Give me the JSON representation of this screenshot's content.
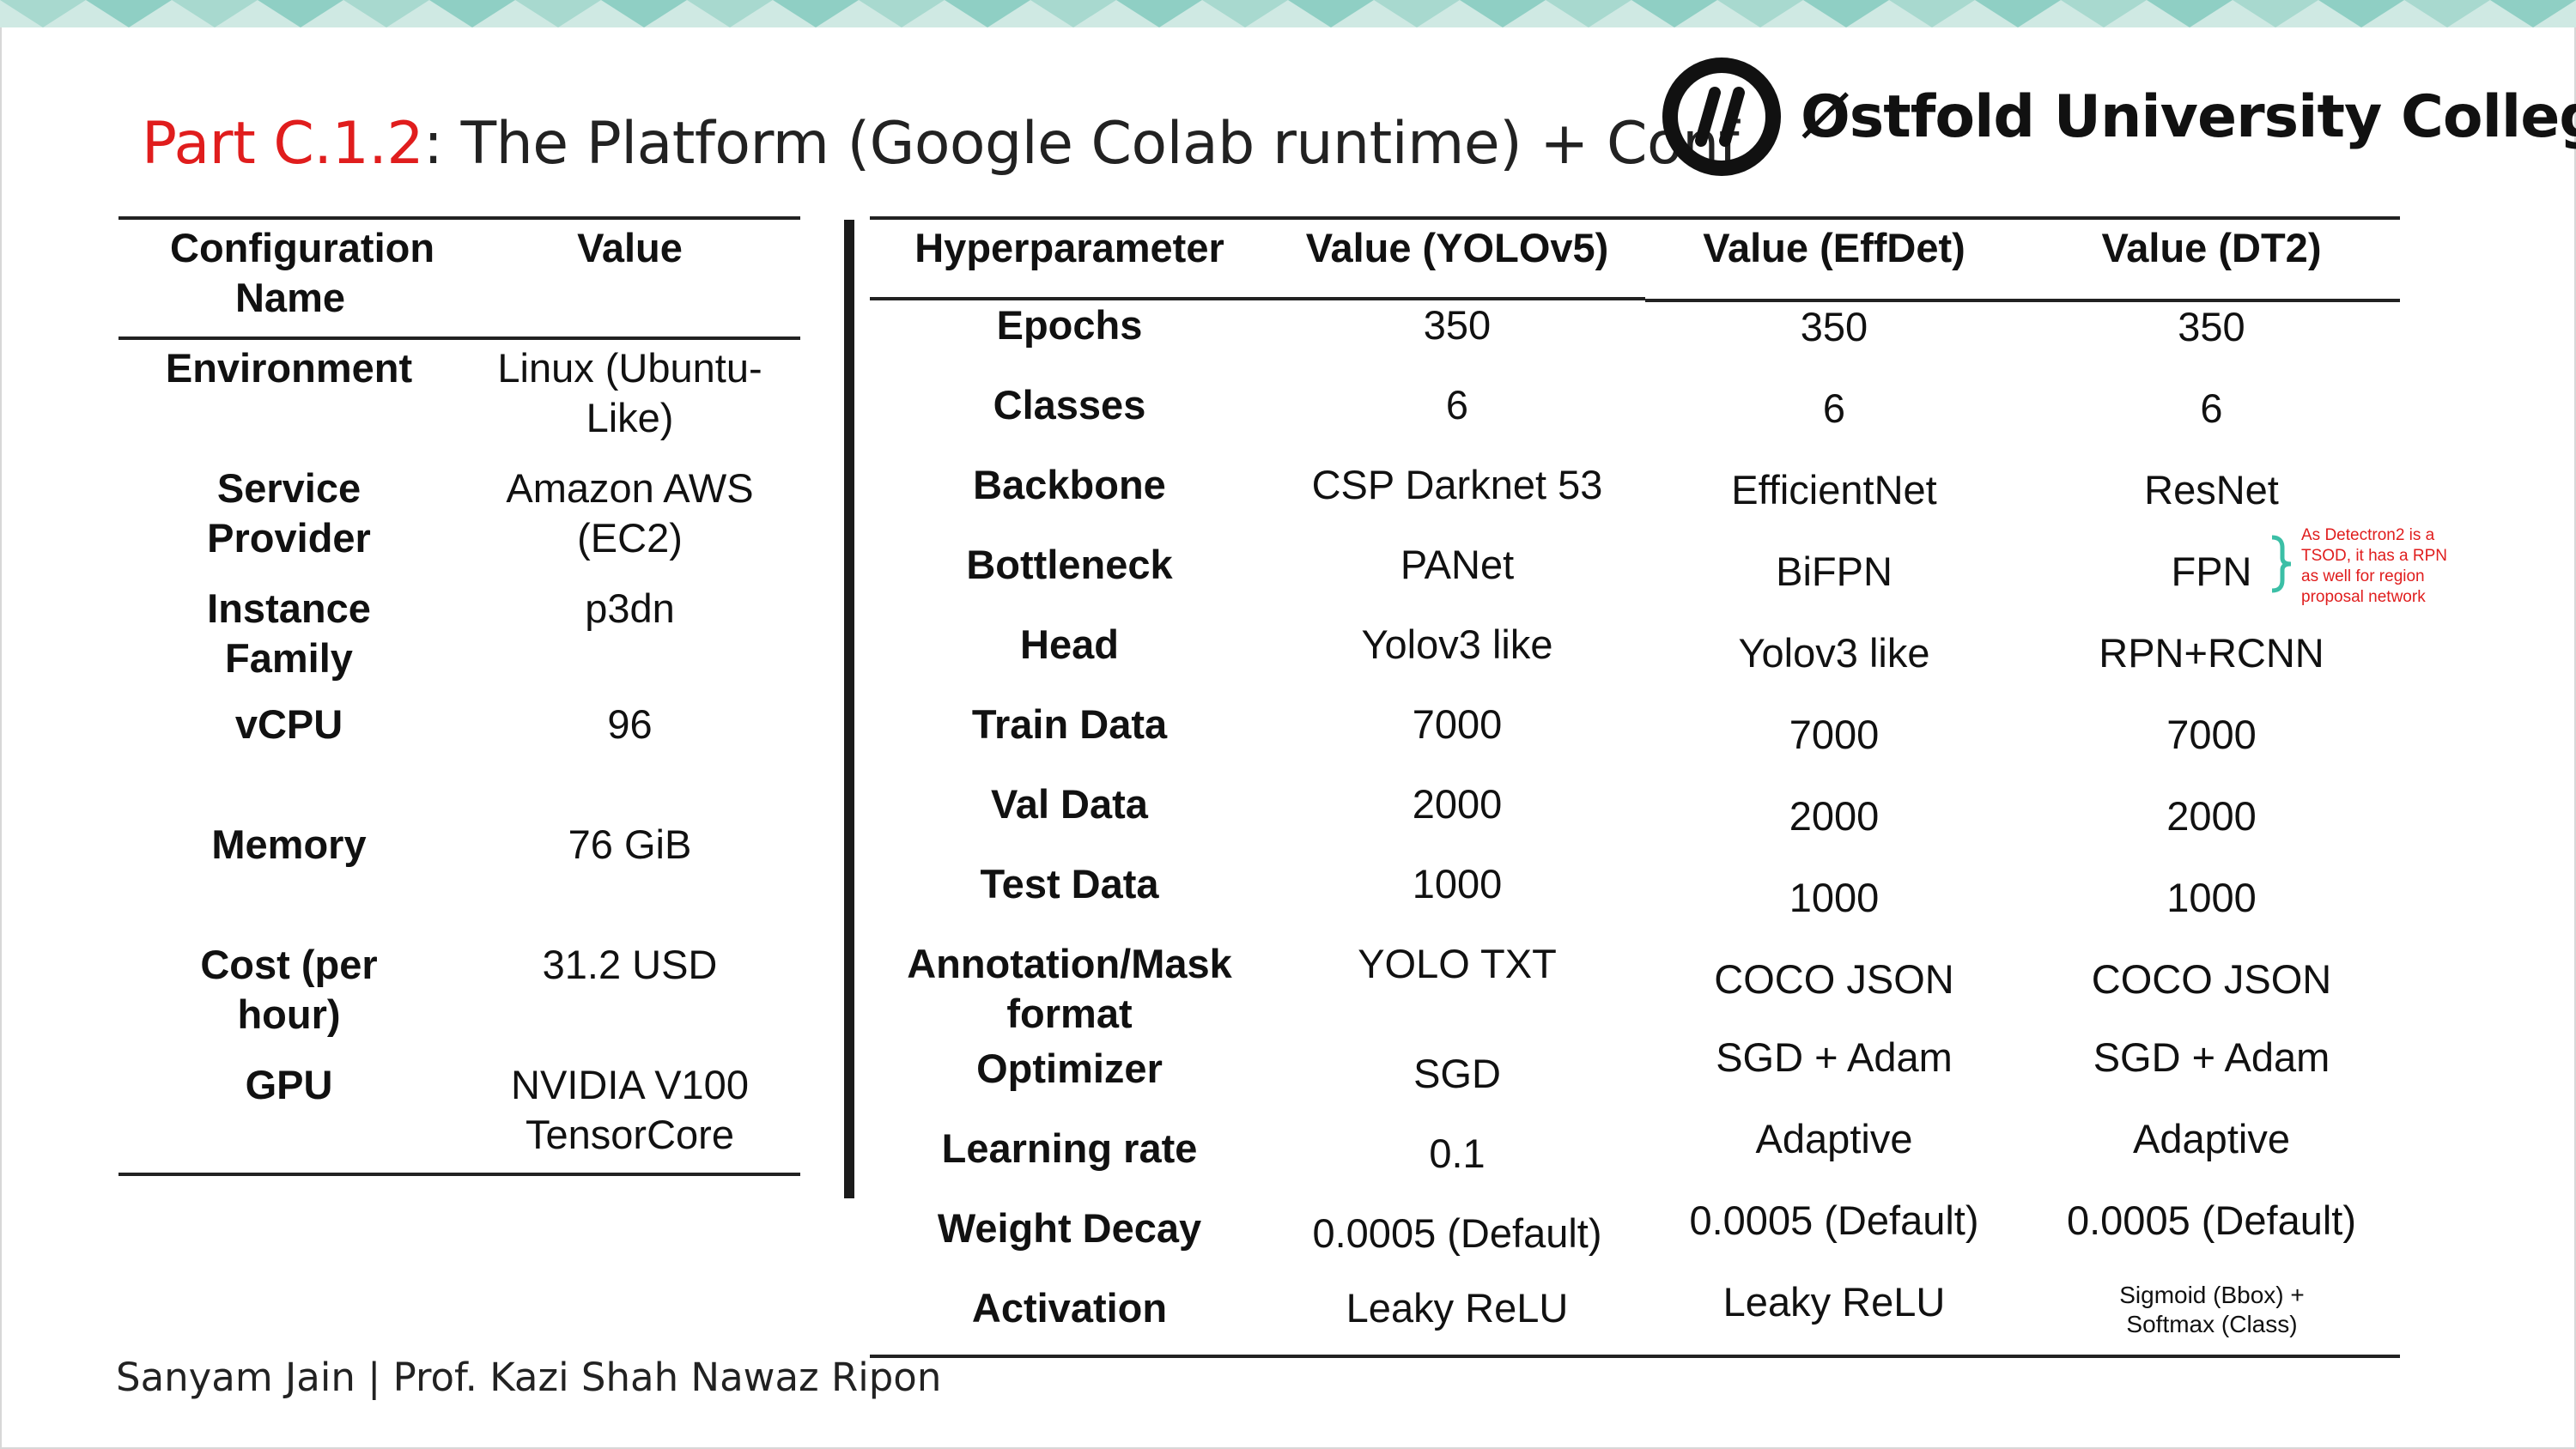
{
  "title": {
    "accent": "Part C.1.2",
    "rest": ": The Platform (Google Colab runtime) + Conf"
  },
  "logo": {
    "name": "Østfold University College",
    "icon": "hiof-logo-icon"
  },
  "config_table": {
    "headers": [
      "Configuration Name",
      "Value"
    ],
    "rows": [
      [
        "Environment",
        "Linux (Ubuntu-Like)"
      ],
      [
        "Service Provider",
        "Amazon AWS (EC2)"
      ],
      [
        "Instance Family",
        "p3dn"
      ],
      [
        "vCPU",
        "96"
      ],
      [
        "Memory",
        "76 GiB"
      ],
      [
        "Cost (per hour)",
        "31.2 USD"
      ],
      [
        "GPU",
        "NVIDIA V100 TensorCore"
      ]
    ]
  },
  "hyper_table": {
    "headers": [
      "Hyperparameter",
      "Value (YOLOv5)",
      "Value (EffDet)",
      "Value (DT2)"
    ],
    "rows": [
      [
        "Epochs",
        "350",
        "350",
        "350"
      ],
      [
        "Classes",
        "6",
        "6",
        "6"
      ],
      [
        "Backbone",
        "CSP Darknet 53",
        "EfficientNet",
        "ResNet"
      ],
      [
        "Bottleneck",
        "PANet",
        "BiFPN",
        "FPN"
      ],
      [
        "Head",
        "Yolov3 like",
        "Yolov3 like",
        "RPN+RCNN"
      ],
      [
        "Train Data",
        "7000",
        "7000",
        "7000"
      ],
      [
        "Val Data",
        "2000",
        "2000",
        "2000"
      ],
      [
        "Test Data",
        "1000",
        "1000",
        "1000"
      ],
      [
        "Annotation/Mask format",
        "YOLO TXT",
        "COCO JSON",
        "COCO JSON"
      ],
      [
        "Optimizer",
        "SGD",
        "SGD + Adam",
        "SGD + Adam"
      ],
      [
        "Learning rate",
        "0.1",
        "Adaptive",
        "Adaptive"
      ],
      [
        "Weight Decay",
        "0.0005 (Default)",
        "0.0005 (Default)",
        "0.0005 (Default)"
      ],
      [
        "Activation",
        "Leaky ReLU",
        "Leaky ReLU",
        "Sigmoid (Bbox) + Softmax (Class)"
      ]
    ]
  },
  "annotation_note": "As Detectron2 is a TSOD, it has a RPN as well for region proposal network",
  "footer": "Sanyam Jain | Prof. Kazi Shah Nawaz Ripon",
  "colors": {
    "accent": "#e01d1d",
    "banner_teal": "#8fcfc4",
    "banner_light": "#d9efe9",
    "brace": "#3bbfa6"
  }
}
